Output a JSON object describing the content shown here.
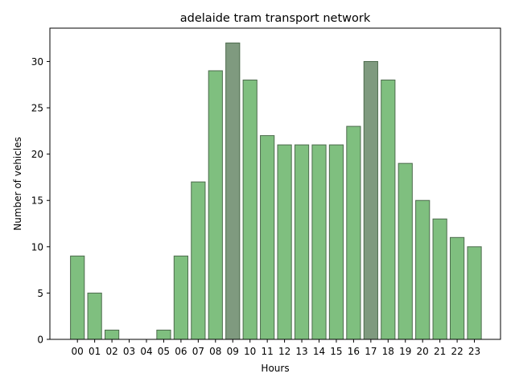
{
  "chart_data": {
    "type": "bar",
    "title": "adelaide tram transport network",
    "xlabel": "Hours",
    "ylabel": "Number of vehicles",
    "categories": [
      "00",
      "01",
      "02",
      "03",
      "04",
      "05",
      "06",
      "07",
      "08",
      "09",
      "10",
      "11",
      "12",
      "13",
      "14",
      "15",
      "16",
      "17",
      "18",
      "19",
      "20",
      "21",
      "22",
      "23"
    ],
    "values": [
      9,
      5,
      1,
      0,
      0,
      1,
      9,
      17,
      29,
      32,
      28,
      22,
      21,
      21,
      21,
      21,
      23,
      30,
      28,
      19,
      15,
      13,
      11,
      10
    ],
    "highlighted": [
      "09",
      "17"
    ],
    "yticks": [
      0,
      5,
      10,
      15,
      20,
      25,
      30
    ],
    "ylim": [
      0,
      33.6
    ],
    "grid": false,
    "colors": {
      "bar": "#7fbf7f",
      "bar_highlight": "#7f9a7f",
      "bar_edge": "#4d6b4d"
    }
  }
}
